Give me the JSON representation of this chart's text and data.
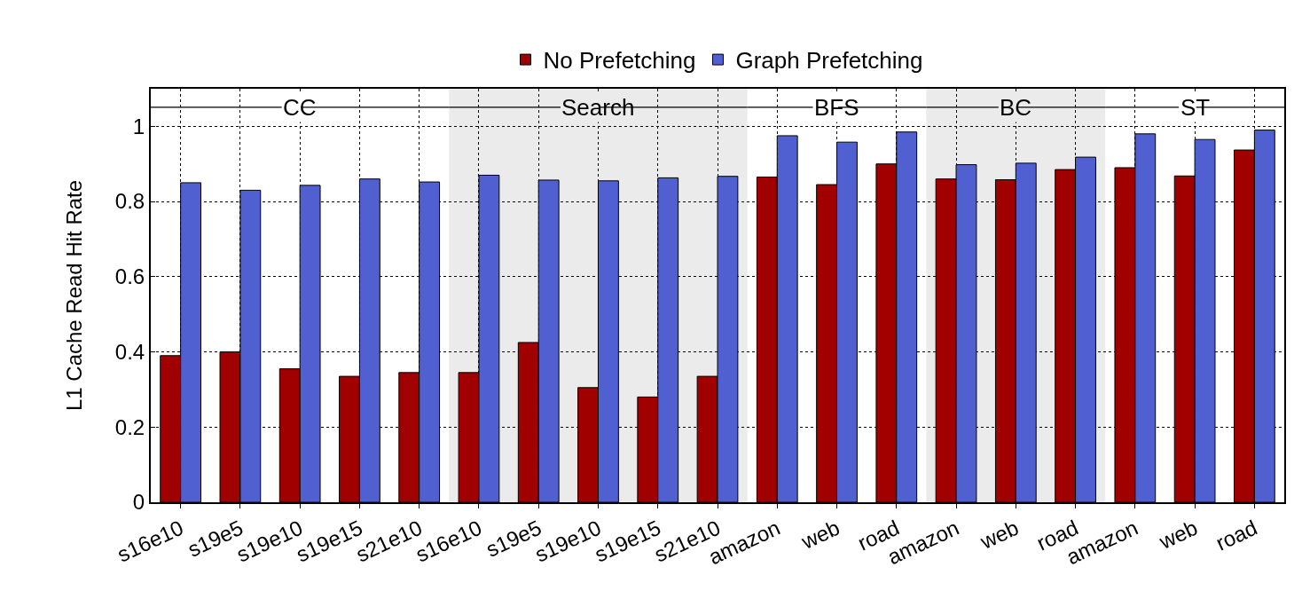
{
  "chart_data": {
    "type": "bar",
    "ylabel": "L1 Cache Read Hit Rate",
    "categories": [
      "s16e10",
      "s19e5",
      "s19e10",
      "s19e15",
      "s21e10",
      "s16e10",
      "s19e5",
      "s19e10",
      "s19e15",
      "s21e10",
      "amazon",
      "web",
      "road",
      "amazon",
      "web",
      "road",
      "amazon",
      "web",
      "road"
    ],
    "series": [
      {
        "name": "No Prefetching",
        "color": "#a00000",
        "values": [
          0.39,
          0.4,
          0.355,
          0.335,
          0.345,
          0.345,
          0.425,
          0.305,
          0.28,
          0.335,
          0.865,
          0.845,
          0.9,
          0.86,
          0.858,
          0.885,
          0.89,
          0.868,
          0.937
        ]
      },
      {
        "name": "Graph Prefetching",
        "color": "#5060d0",
        "values": [
          0.85,
          0.83,
          0.843,
          0.86,
          0.852,
          0.87,
          0.857,
          0.855,
          0.863,
          0.867,
          0.975,
          0.958,
          0.985,
          0.898,
          0.902,
          0.918,
          0.98,
          0.965,
          0.99
        ]
      }
    ],
    "annotations": [
      "CC",
      "Search",
      "BFS",
      "BC",
      "ST"
    ],
    "ylim": [
      0,
      1.1
    ],
    "yticks": [
      0,
      0.2,
      0.4,
      0.6,
      0.8,
      1
    ],
    "grid": true,
    "legend": "top"
  }
}
